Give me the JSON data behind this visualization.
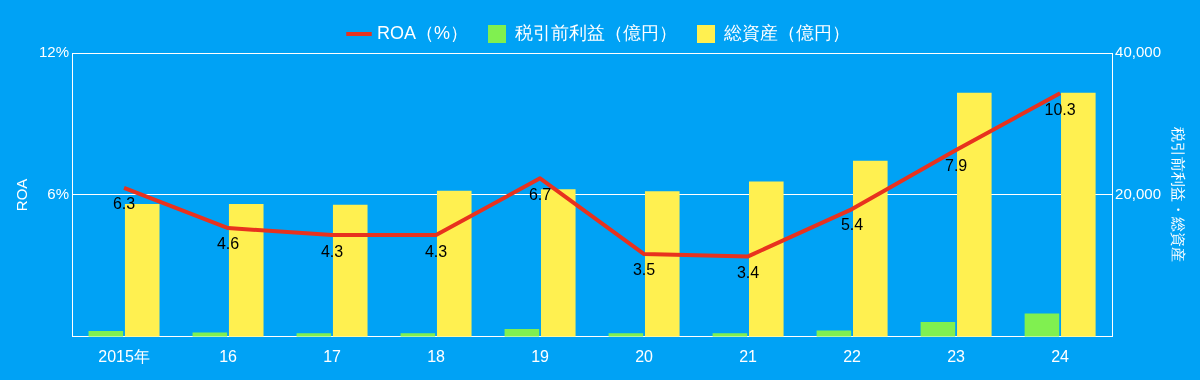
{
  "chart_data": {
    "type": "bar",
    "categories": [
      "2015年",
      "16",
      "17",
      "18",
      "19",
      "20",
      "21",
      "22",
      "23",
      "24"
    ],
    "series": [
      {
        "name": "ROA（%）",
        "type": "line",
        "color": "#e8321e",
        "values": [
          6.3,
          4.6,
          4.3,
          4.3,
          6.7,
          3.5,
          3.4,
          5.4,
          7.9,
          10.3
        ],
        "value_labels": [
          "6.3",
          "4.6",
          "4.3",
          "4.3",
          "6.7",
          "3.5",
          "3.4",
          "5.4",
          "7.9",
          "10.3"
        ]
      },
      {
        "name": "税引前利益（億円）",
        "axis": "y2",
        "color": "#80f050",
        "values": [
          800,
          600,
          500,
          500,
          1100,
          500,
          500,
          900,
          2100,
          3300
        ]
      },
      {
        "name": "総資産（億円）",
        "axis": "y2",
        "color": "#fff050",
        "values": [
          18700,
          18700,
          18600,
          20600,
          20800,
          20500,
          21900,
          24800,
          34400,
          34400
        ]
      }
    ],
    "ylabel": "ROA",
    "y2label": "税引前利益・総資産",
    "ylim": [
      0,
      12
    ],
    "yticks": [
      {
        "value": 6,
        "label": "6%"
      },
      {
        "value": 12,
        "label": "12%"
      }
    ],
    "y2lim": [
      0,
      40000
    ],
    "y2ticks": [
      {
        "value": 20000,
        "label": "20,000"
      },
      {
        "value": 40000,
        "label": "40,000"
      }
    ],
    "grid": "y",
    "legend": "top",
    "marker": "none",
    "line_style": "solid"
  }
}
